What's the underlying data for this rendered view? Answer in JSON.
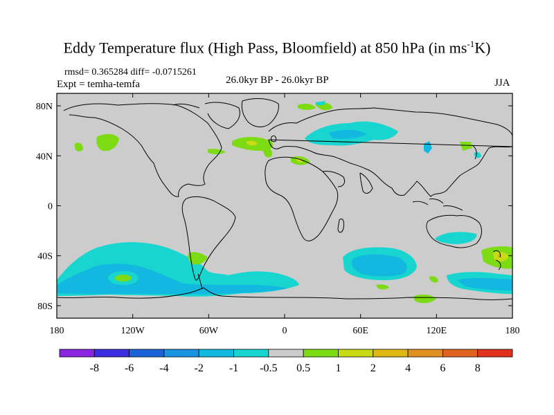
{
  "header": {
    "title_main": "Eddy Temperature flux (High Pass, Bloomfield) at 850 hPa (in ms",
    "title_sup": "-1",
    "title_end": "K)",
    "rmsd_line": "rmsd= 0.365284 diff= -0.0715261",
    "expt": "Expt = temha-temfa",
    "period": "26.0kyr BP - 26.0kyr BP",
    "season": "JJA"
  },
  "axes": {
    "x_ticks": [
      "180",
      "120W",
      "60W",
      "0",
      "60E",
      "120E",
      "180"
    ],
    "y_ticks": [
      "80N",
      "40N",
      "0",
      "40S",
      "80S"
    ]
  },
  "colorbar": {
    "labels": [
      "-8",
      "-6",
      "-4",
      "-2",
      "-1",
      "-0.5",
      "0.5",
      "1",
      "2",
      "4",
      "6",
      "8"
    ],
    "colors": [
      "#8a24e0",
      "#3a2ee0",
      "#1a63d8",
      "#1a93e3",
      "#12b8df",
      "#18d6cf",
      "#cccccc",
      "#7ddb14",
      "#c8db14",
      "#e0b814",
      "#e0901e",
      "#e0641e",
      "#e0321e"
    ]
  },
  "map": {
    "background_color": "#cccccc",
    "coast_color": "#000000",
    "colors": {
      "light_cyan": "#18d6cf",
      "cyan": "#12b8df",
      "green": "#7ddb14",
      "yellow": "#c8db14",
      "orange": "#e0b814"
    }
  }
}
